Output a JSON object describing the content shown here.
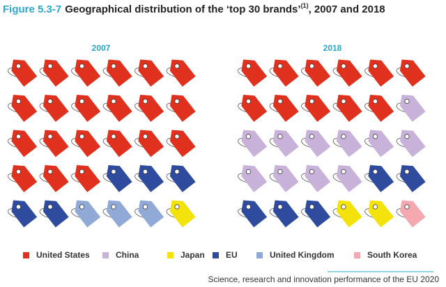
{
  "figure_label": "Figure 5.3-7",
  "title": "Geographical distribution of the ‘top 30 brands’",
  "title_note": "(1)",
  "title_suffix": ", 2007 and 2018",
  "chart_data": {
    "type": "pictogram",
    "categories": [
      "United States",
      "China",
      "Japan",
      "EU",
      "United Kingdom",
      "South Korea"
    ],
    "colors": [
      "#e0301e",
      "#c8b2d9",
      "#f3e20c",
      "#2f4b9e",
      "#91a9d6",
      "#f4a8b0"
    ],
    "series": [
      {
        "name": "2007",
        "values": [
          21,
          0,
          1,
          5,
          3,
          0
        ]
      },
      {
        "name": "2018",
        "values": [
          11,
          11,
          2,
          5,
          0,
          1
        ]
      }
    ]
  },
  "footer": "Science, research and innovation performance of the EU 2020"
}
